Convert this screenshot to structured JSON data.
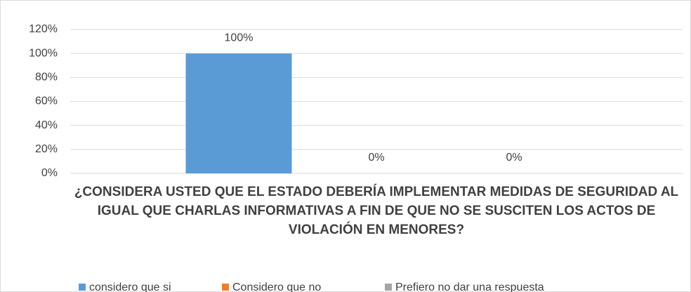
{
  "chart_data": {
    "type": "bar",
    "categories": [
      "¿CONSIDERA USTED QUE EL ESTADO DEBERÍA IMPLEMENTAR MEDIDAS DE SEGURIDAD AL IGUAL QUE CHARLAS INFORMATIVAS A FIN DE QUE NO SE SUSCITEN LOS ACTOS DE VIOLACIÓN EN MENORES?"
    ],
    "series": [
      {
        "name": "considero que si",
        "color": "#5b9bd5",
        "values": [
          100
        ],
        "value_labels": [
          "100%"
        ]
      },
      {
        "name": "Considero que no",
        "color": "#ed7d31",
        "values": [
          0
        ],
        "value_labels": [
          "0%"
        ]
      },
      {
        "name": "Prefiero no dar una respuesta",
        "color": "#a5a5a5",
        "values": [
          0
        ],
        "value_labels": [
          "0%"
        ]
      }
    ],
    "ylim": [
      0,
      120
    ],
    "yticks": [
      {
        "value": 0,
        "label": "0%"
      },
      {
        "value": 20,
        "label": "20%"
      },
      {
        "value": 40,
        "label": "40%"
      },
      {
        "value": 60,
        "label": "60%"
      },
      {
        "value": 80,
        "label": "80%"
      },
      {
        "value": 100,
        "label": "100%"
      },
      {
        "value": 120,
        "label": "120%"
      }
    ],
    "grid": true,
    "legend": "bottom"
  }
}
